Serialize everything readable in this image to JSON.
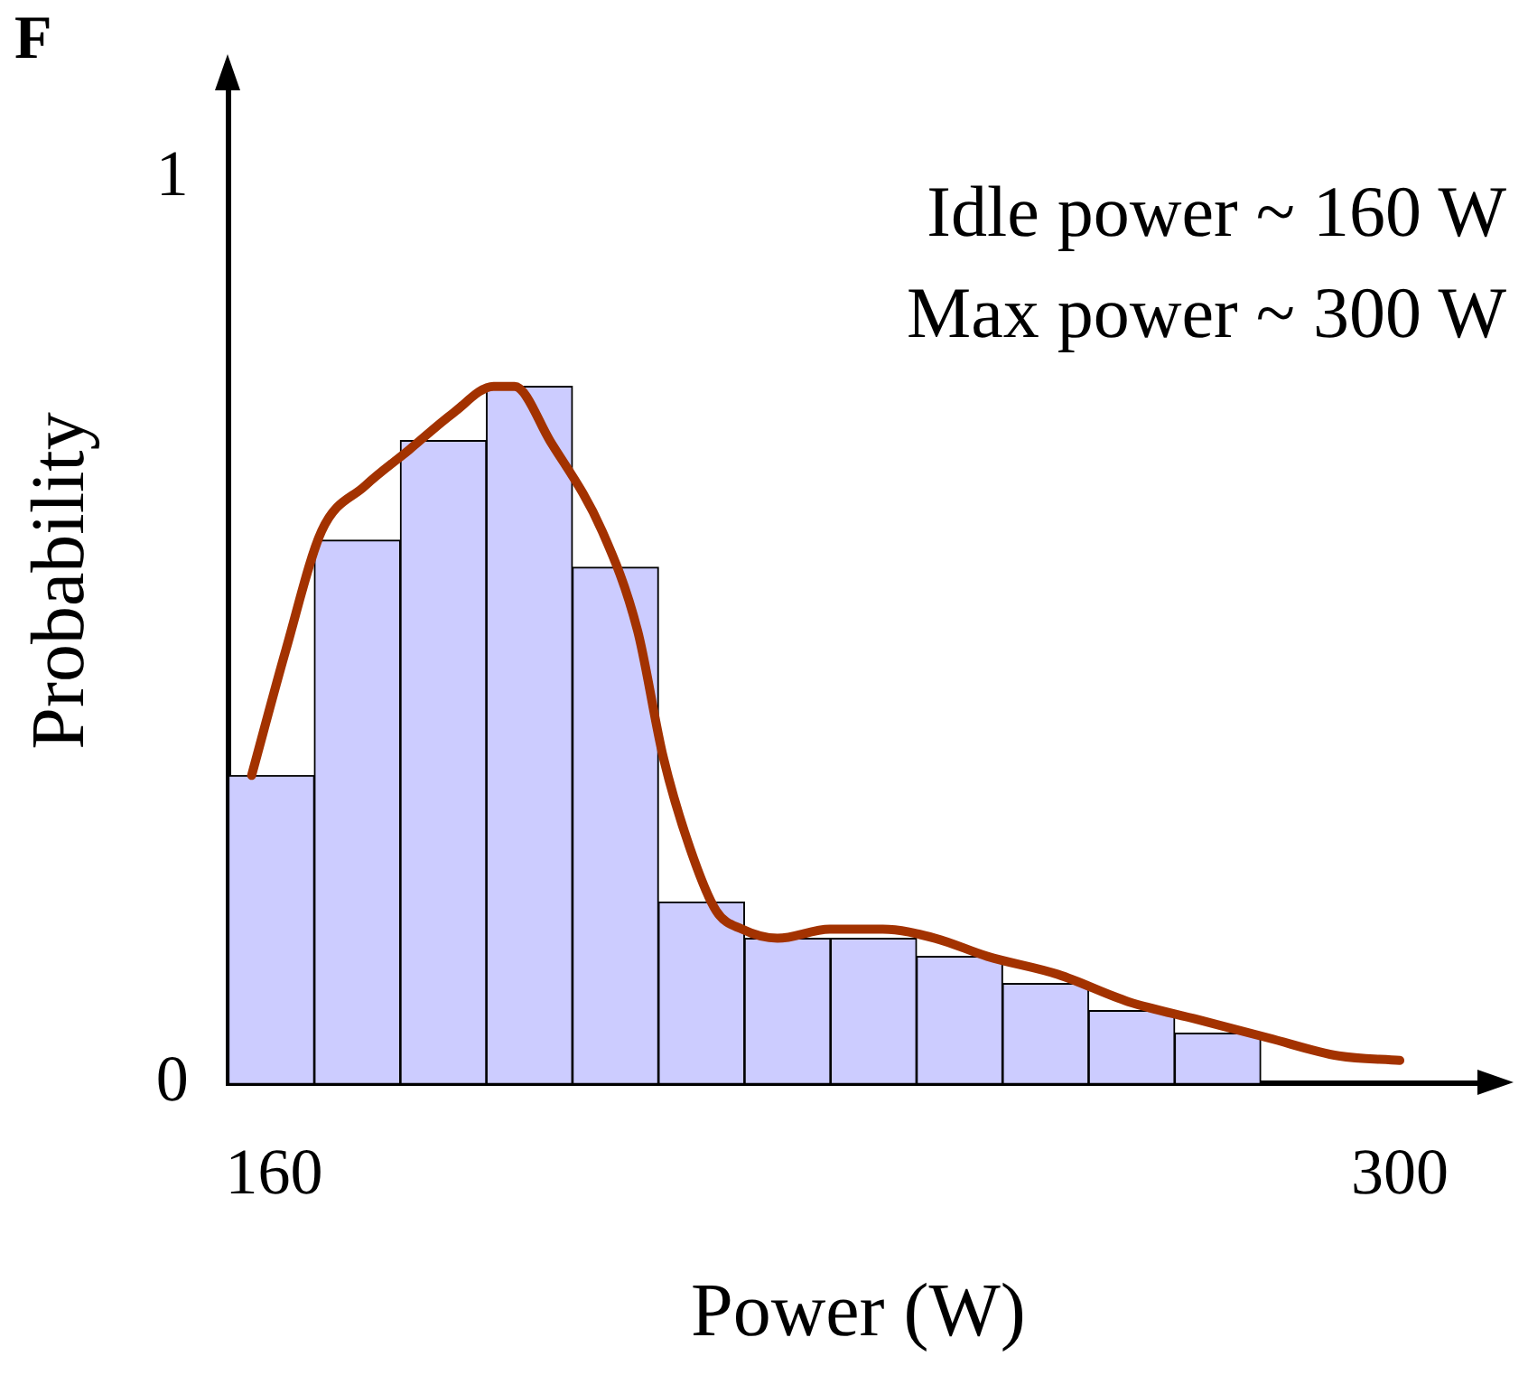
{
  "chart_data": {
    "type": "histogram",
    "xlabel": "Power (W)",
    "ylabel": "Probability",
    "annotations": [
      "F",
      "Idle power ~ 160 W",
      "Max power ~ 300 W"
    ],
    "xlim": [
      154.3,
      311
    ],
    "xticks": [
      160,
      300
    ],
    "ylim": [
      0,
      1.11
    ],
    "yticks": [
      0,
      1
    ],
    "grid": false,
    "legend": false,
    "series": [
      {
        "type": "histogram",
        "color": "#ccccff",
        "bins": [
          154.3,
          165,
          175.7,
          186.4,
          197.1,
          207.8,
          218.5,
          229.2,
          239.9,
          250.6,
          261.3,
          272,
          282.7
        ],
        "values": [
          0.34,
          0.6,
          0.71,
          0.77,
          0.57,
          0.2,
          0.16,
          0.16,
          0.14,
          0.11,
          0.08,
          0.055
        ]
      },
      {
        "type": "line",
        "color": "#a33200",
        "marker": "none",
        "x": [
          157.2,
          161.5,
          165.9,
          171.3,
          176.8,
          182.2,
          187.3,
          189.9,
          194.3,
          200.8,
          205.2,
          208.4,
          211.7,
          215,
          218.2,
          222.6,
          229.1,
          235.7,
          242.2,
          248.7,
          257.5,
          266.2,
          274.9,
          283.6,
          292.4,
          300
        ],
        "values": [
          0.34,
          0.48,
          0.61,
          0.66,
          0.7,
          0.74,
          0.77,
          0.77,
          0.71,
          0.61,
          0.5,
          0.36,
          0.26,
          0.19,
          0.17,
          0.16,
          0.17,
          0.17,
          0.16,
          0.14,
          0.12,
          0.09,
          0.07,
          0.05,
          0.03,
          0.025
        ]
      }
    ]
  }
}
